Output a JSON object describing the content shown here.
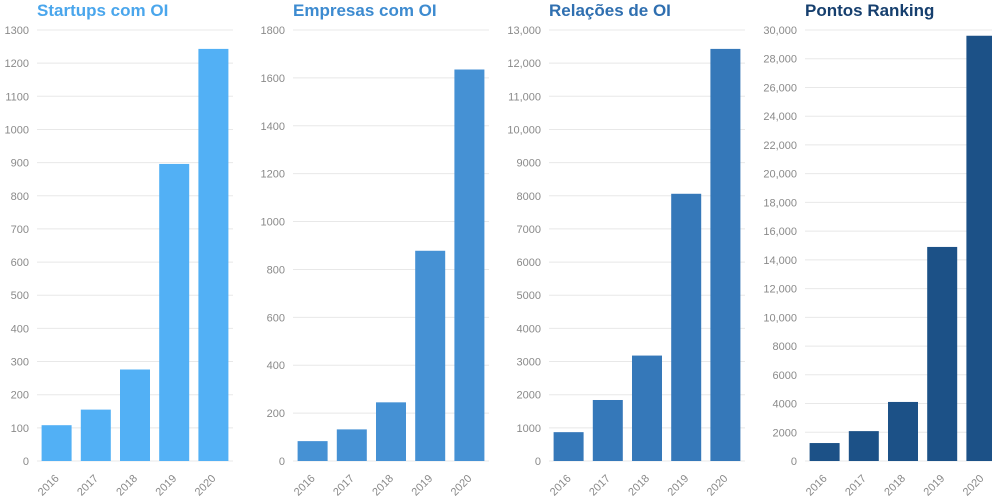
{
  "colors": {
    "series": [
      "#52b0f5",
      "#4591d4",
      "#3578b9",
      "#1c5187"
    ],
    "titles": [
      "#4aa6ec",
      "#3d8bd0",
      "#2f6fb0",
      "#163f6e"
    ],
    "grid": "#e8e8e8",
    "tick_text": "#8a8a8a"
  },
  "chart_data": [
    {
      "type": "bar",
      "title": "Startups com OI",
      "categories": [
        "2016",
        "2017",
        "2018",
        "2019",
        "2020"
      ],
      "values": [
        108,
        155,
        276,
        896,
        1243
      ],
      "ylim": [
        0,
        1300
      ],
      "yticks": [
        0,
        100,
        200,
        300,
        400,
        500,
        600,
        700,
        800,
        900,
        1000,
        1100,
        1200,
        1300
      ],
      "ytick_labels": [
        "0",
        "100",
        "200",
        "300",
        "400",
        "500",
        "600",
        "700",
        "800",
        "900",
        "1000",
        "1100",
        "1200",
        "1300"
      ],
      "grid": true
    },
    {
      "type": "bar",
      "title": "Empresas com OI",
      "categories": [
        "2016",
        "2017",
        "2018",
        "2019",
        "2020"
      ],
      "values": [
        83,
        132,
        245,
        878,
        1635
      ],
      "ylim": [
        0,
        1800
      ],
      "yticks": [
        0,
        200,
        400,
        600,
        800,
        1000,
        1200,
        1400,
        1600,
        1800
      ],
      "ytick_labels": [
        "0",
        "200",
        "400",
        "600",
        "800",
        "1000",
        "1200",
        "1400",
        "1600",
        "1800"
      ],
      "grid": true
    },
    {
      "type": "bar",
      "title": "Relações de OI",
      "categories": [
        "2016",
        "2017",
        "2018",
        "2019",
        "2020"
      ],
      "values": [
        870,
        1840,
        3180,
        8060,
        12430
      ],
      "ylim": [
        0,
        13000
      ],
      "yticks": [
        0,
        1000,
        2000,
        3000,
        4000,
        5000,
        6000,
        7000,
        8000,
        9000,
        10000,
        11000,
        12000,
        13000
      ],
      "ytick_labels": [
        "0",
        "1000",
        "2000",
        "3000",
        "4000",
        "5000",
        "6000",
        "7000",
        "8000",
        "9000",
        "10,000",
        "11,000",
        "12,000",
        "13,000"
      ],
      "grid": true
    },
    {
      "type": "bar",
      "title": "Pontos Ranking",
      "categories": [
        "2016",
        "2017",
        "2018",
        "2019",
        "2020"
      ],
      "values": [
        1250,
        2080,
        4110,
        14900,
        29600
      ],
      "ylim": [
        0,
        30000
      ],
      "yticks": [
        0,
        2000,
        4000,
        6000,
        8000,
        10000,
        12000,
        14000,
        16000,
        18000,
        20000,
        22000,
        24000,
        26000,
        28000,
        30000
      ],
      "ytick_labels": [
        "0",
        "2000",
        "4000",
        "6000",
        "8000",
        "10,000",
        "12,000",
        "14,000",
        "16,000",
        "18,000",
        "20,000",
        "22,000",
        "24,000",
        "26,000",
        "28,000",
        "30,000"
      ],
      "grid": true
    }
  ]
}
